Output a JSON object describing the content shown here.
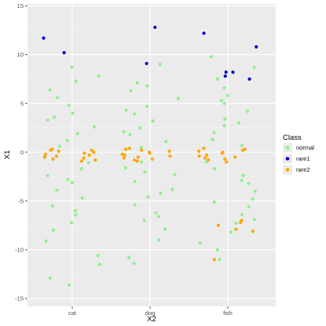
{
  "chart_data": {
    "type": "scatter",
    "title": "",
    "xlabel": "X2",
    "ylabel": "X1",
    "x_type": "categorical",
    "categories": [
      "cat",
      "dog",
      "fish"
    ],
    "ylim": [
      -15.8,
      15.2
    ],
    "yticks": [
      -15,
      -10,
      -5,
      0,
      5,
      10,
      15
    ],
    "grid": true,
    "legend": {
      "title": "Class",
      "position": "right"
    },
    "series": [
      {
        "name": "normal",
        "color": "#90EE90",
        "points": [
          {
            "x": "cat",
            "y": 8.7
          },
          {
            "x": "cat",
            "y": 7.3
          },
          {
            "x": "cat",
            "y": 6.4
          },
          {
            "x": "cat",
            "y": 5.6
          },
          {
            "x": "cat",
            "y": 4.8
          },
          {
            "x": "cat",
            "y": 4.0
          },
          {
            "x": "cat",
            "y": 3.3
          },
          {
            "x": "cat",
            "y": 2.6
          },
          {
            "x": "cat",
            "y": 1.9
          },
          {
            "x": "cat",
            "y": 1.2
          },
          {
            "x": "cat",
            "y": 0.6
          },
          {
            "x": "cat",
            "y": -1.1
          },
          {
            "x": "cat",
            "y": -1.7
          },
          {
            "x": "cat",
            "y": -2.4
          },
          {
            "x": "cat",
            "y": -3.1
          },
          {
            "x": "cat",
            "y": -3.9
          },
          {
            "x": "cat",
            "y": -4.7
          },
          {
            "x": "cat",
            "y": -5.5
          },
          {
            "x": "cat",
            "y": -6.4
          },
          {
            "x": "cat",
            "y": -7.2
          },
          {
            "x": "cat",
            "y": -8.0
          },
          {
            "x": "cat",
            "y": -9.1
          },
          {
            "x": "cat",
            "y": -10.6
          },
          {
            "x": "cat",
            "y": -11.5
          },
          {
            "x": "cat",
            "y": -12.9
          },
          {
            "x": "cat",
            "y": -13.6
          },
          {
            "x": "cat",
            "y": 7.8
          },
          {
            "x": "cat",
            "y": 3.6
          },
          {
            "x": "cat",
            "y": -2.8
          },
          {
            "x": "cat",
            "y": -6.0
          },
          {
            "x": "dog",
            "y": 9.0
          },
          {
            "x": "dog",
            "y": 7.1
          },
          {
            "x": "dog",
            "y": 6.3
          },
          {
            "x": "dog",
            "y": 5.5
          },
          {
            "x": "dog",
            "y": 4.7
          },
          {
            "x": "dog",
            "y": 3.9
          },
          {
            "x": "dog",
            "y": 3.2
          },
          {
            "x": "dog",
            "y": 2.5
          },
          {
            "x": "dog",
            "y": 1.8
          },
          {
            "x": "dog",
            "y": 1.1
          },
          {
            "x": "dog",
            "y": 0.5
          },
          {
            "x": "dog",
            "y": -1.0
          },
          {
            "x": "dog",
            "y": -1.6
          },
          {
            "x": "dog",
            "y": -2.3
          },
          {
            "x": "dog",
            "y": -3.0
          },
          {
            "x": "dog",
            "y": -3.8
          },
          {
            "x": "dog",
            "y": -4.6
          },
          {
            "x": "dog",
            "y": -5.4
          },
          {
            "x": "dog",
            "y": -6.2
          },
          {
            "x": "dog",
            "y": -7.0
          },
          {
            "x": "dog",
            "y": -7.9
          },
          {
            "x": "dog",
            "y": -9.0
          },
          {
            "x": "dog",
            "y": -10.8
          },
          {
            "x": "dog",
            "y": -11.4
          },
          {
            "x": "dog",
            "y": 6.8
          },
          {
            "x": "dog",
            "y": 4.3
          },
          {
            "x": "dog",
            "y": 2.1
          },
          {
            "x": "dog",
            "y": -2.0
          },
          {
            "x": "dog",
            "y": -4.2
          },
          {
            "x": "dog",
            "y": -6.6
          },
          {
            "x": "fish",
            "y": 8.7
          },
          {
            "x": "fish",
            "y": 7.5
          },
          {
            "x": "fish",
            "y": 6.6
          },
          {
            "x": "fish",
            "y": 5.8
          },
          {
            "x": "fish",
            "y": 5.0
          },
          {
            "x": "fish",
            "y": 4.2
          },
          {
            "x": "fish",
            "y": 3.4
          },
          {
            "x": "fish",
            "y": 2.7
          },
          {
            "x": "fish",
            "y": 2.0
          },
          {
            "x": "fish",
            "y": 1.3
          },
          {
            "x": "fish",
            "y": 0.7
          },
          {
            "x": "fish",
            "y": -1.0
          },
          {
            "x": "fish",
            "y": -1.7
          },
          {
            "x": "fish",
            "y": -2.4
          },
          {
            "x": "fish",
            "y": -3.2
          },
          {
            "x": "fish",
            "y": -4.0
          },
          {
            "x": "fish",
            "y": -4.8
          },
          {
            "x": "fish",
            "y": -5.6
          },
          {
            "x": "fish",
            "y": -6.4
          },
          {
            "x": "fish",
            "y": -7.3
          },
          {
            "x": "fish",
            "y": -8.2
          },
          {
            "x": "fish",
            "y": -9.3
          },
          {
            "x": "fish",
            "y": -10.0
          },
          {
            "x": "fish",
            "y": -11.0
          },
          {
            "x": "fish",
            "y": 9.8
          },
          {
            "x": "fish",
            "y": 5.3
          },
          {
            "x": "fish",
            "y": 3.0
          },
          {
            "x": "fish",
            "y": -2.9
          },
          {
            "x": "fish",
            "y": -5.1
          },
          {
            "x": "fish",
            "y": -6.9
          }
        ]
      },
      {
        "name": "rare1",
        "color": "#0000CD",
        "points": [
          {
            "x": "cat",
            "y": 11.7
          },
          {
            "x": "cat",
            "y": 10.2
          },
          {
            "x": "dog",
            "y": 12.8
          },
          {
            "x": "dog",
            "y": 9.1
          },
          {
            "x": "fish",
            "y": 12.2
          },
          {
            "x": "fish",
            "y": 10.8
          },
          {
            "x": "fish",
            "y": 7.8
          },
          {
            "x": "fish",
            "y": 7.5
          },
          {
            "x": "fish",
            "y": 8.2
          },
          {
            "x": "fish",
            "y": 8.2
          }
        ]
      },
      {
        "name": "rare2",
        "color": "#FFA500",
        "points": [
          {
            "x": "cat",
            "y": 0.2
          },
          {
            "x": "cat",
            "y": -0.3
          },
          {
            "x": "cat",
            "y": -0.8
          },
          {
            "x": "cat",
            "y": 0.1
          },
          {
            "x": "cat",
            "y": -0.5
          },
          {
            "x": "cat",
            "y": 0.3
          },
          {
            "x": "cat",
            "y": -0.1
          },
          {
            "x": "cat",
            "y": -0.6
          },
          {
            "x": "cat",
            "y": -0.9
          },
          {
            "x": "cat",
            "y": 0.0
          },
          {
            "x": "cat",
            "y": -0.4
          },
          {
            "x": "cat",
            "y": 0.2
          },
          {
            "x": "cat",
            "y": -0.7
          },
          {
            "x": "cat",
            "y": -0.2
          },
          {
            "x": "dog",
            "y": 0.3
          },
          {
            "x": "dog",
            "y": -0.2
          },
          {
            "x": "dog",
            "y": -0.7
          },
          {
            "x": "dog",
            "y": 0.1
          },
          {
            "x": "dog",
            "y": -0.4
          },
          {
            "x": "dog",
            "y": 0.4
          },
          {
            "x": "dog",
            "y": -0.1
          },
          {
            "x": "dog",
            "y": -0.6
          },
          {
            "x": "dog",
            "y": -0.9
          },
          {
            "x": "dog",
            "y": 0.0
          },
          {
            "x": "dog",
            "y": -0.3
          },
          {
            "x": "dog",
            "y": 0.2
          },
          {
            "x": "dog",
            "y": -0.8
          },
          {
            "x": "dog",
            "y": -0.5
          },
          {
            "x": "fish",
            "y": 0.3
          },
          {
            "x": "fish",
            "y": -0.3
          },
          {
            "x": "fish",
            "y": -0.8
          },
          {
            "x": "fish",
            "y": 0.1
          },
          {
            "x": "fish",
            "y": -0.5
          },
          {
            "x": "fish",
            "y": 0.4
          },
          {
            "x": "fish",
            "y": -0.1
          },
          {
            "x": "fish",
            "y": -0.6
          },
          {
            "x": "fish",
            "y": -1.0
          },
          {
            "x": "fish",
            "y": 0.0
          },
          {
            "x": "fish",
            "y": -0.4
          },
          {
            "x": "fish",
            "y": 0.2
          },
          {
            "x": "fish",
            "y": -0.7
          },
          {
            "x": "fish",
            "y": -7.0
          },
          {
            "x": "fish",
            "y": -7.5
          },
          {
            "x": "fish",
            "y": -8.1
          },
          {
            "x": "fish",
            "y": -7.2
          },
          {
            "x": "fish",
            "y": -7.9
          },
          {
            "x": "fish",
            "y": -11.0
          }
        ]
      }
    ]
  }
}
